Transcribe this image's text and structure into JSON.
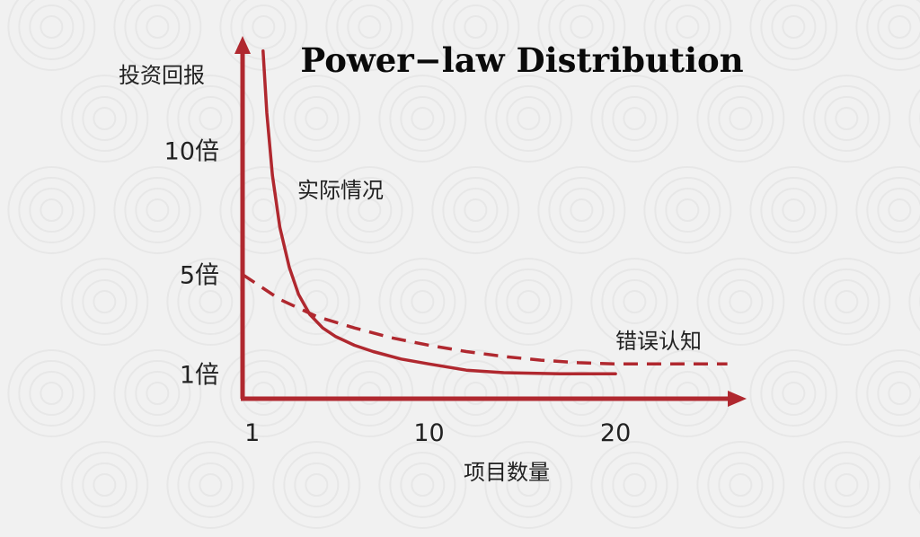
{
  "chart_data": {
    "type": "line",
    "title": "Power−law  Distribution",
    "xlabel": "项目数量",
    "ylabel": "投资回报",
    "x_ticks": [
      {
        "value": 1,
        "label": "1"
      },
      {
        "value": 10,
        "label": "10"
      },
      {
        "value": 20,
        "label": "20"
      }
    ],
    "y_ticks": [
      {
        "value": 1,
        "label": "1倍"
      },
      {
        "value": 5,
        "label": "5倍"
      },
      {
        "value": 10,
        "label": "10倍"
      }
    ],
    "xlim": [
      0,
      26.5
    ],
    "ylim": [
      0,
      14.5
    ],
    "series": [
      {
        "name": "实际情况",
        "style": "solid",
        "color": "#b0282f",
        "x": [
          1.1,
          1.3,
          1.6,
          2.0,
          2.5,
          3.0,
          3.6,
          4.3,
          5.0,
          6.0,
          7.0,
          8.5,
          10.0,
          12.0,
          14.0,
          17.0,
          20.0
        ],
        "y": [
          14.0,
          11.5,
          9.0,
          6.9,
          5.3,
          4.2,
          3.4,
          2.85,
          2.5,
          2.15,
          1.9,
          1.6,
          1.4,
          1.15,
          1.05,
          1.0,
          1.0
        ]
      },
      {
        "name": "错误认知",
        "style": "dashed",
        "color": "#b0282f",
        "x": [
          0,
          2,
          4,
          6,
          8,
          10,
          12,
          14,
          16,
          18,
          20,
          22,
          24,
          26
        ],
        "y": [
          5.0,
          4.0,
          3.3,
          2.85,
          2.45,
          2.15,
          1.9,
          1.7,
          1.55,
          1.45,
          1.4,
          1.4,
          1.4,
          1.4
        ]
      }
    ],
    "axis_color": "#b0282f",
    "grid": false
  }
}
